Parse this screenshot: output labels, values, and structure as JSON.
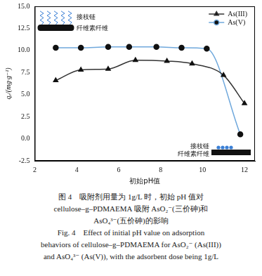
{
  "chart_data": {
    "type": "line",
    "x_label": "初始pH值",
    "y_label": "qₑ/(mg·g⁻¹)",
    "xlim": [
      2,
      12.5
    ],
    "xticks": [
      2,
      4,
      6,
      8,
      10,
      12
    ],
    "ylim": [
      -2.5,
      15
    ],
    "yticks": [
      {
        "value": -2.5,
        "label": "-2.5"
      },
      {
        "value": 0,
        "label": "0.0"
      },
      {
        "value": 2.5,
        "label": "2.5"
      },
      {
        "value": 5,
        "label": "5.0"
      },
      {
        "value": 7.5,
        "label": "7.5"
      },
      {
        "value": 10,
        "label": "10.0"
      },
      {
        "value": 12.5,
        "label": "12.5"
      },
      {
        "value": 15,
        "label": "15.0"
      }
    ],
    "grid": false,
    "legend": "upper right",
    "series": [
      {
        "name": "As(III)",
        "color": "#333333",
        "marker": "triangle",
        "x": [
          3,
          4.2,
          5.5,
          6.8,
          8.3,
          9.5,
          11,
          12
        ],
        "values": [
          6.6,
          7.8,
          7.9,
          8.9,
          8.8,
          8.5,
          7.2,
          4.0
        ]
      },
      {
        "name": "As(V)",
        "color": "#6fa8dc",
        "marker": "circle",
        "x": [
          3,
          4.2,
          5.5,
          6.5,
          7.8,
          9,
          10.2,
          11.8
        ],
        "values": [
          10.3,
          10.3,
          10.4,
          10.4,
          10.4,
          10.3,
          10.2,
          0.5
        ]
      }
    ],
    "annotations": [
      "接枝链",
      "纤维素纤维",
      "接枝链",
      "纤维素纤维"
    ],
    "caption": [
      "图 4　吸附剂用量为 1g/L 时，初始 pH 值对",
      "cellulose–g–PDMAEMA 吸附 AsO₂⁻(三价砷)和",
      "AsO₄³⁻(五价砷)的影响",
      "Fig. 4　Effect of initial pH value on adsorption",
      "behaviors of cellulose–g–PDMAEMA for AsO₂⁻ (As(III))",
      "and AsO₄³⁻ (As(V)), with the adsorbent dose being 1g/L"
    ]
  }
}
